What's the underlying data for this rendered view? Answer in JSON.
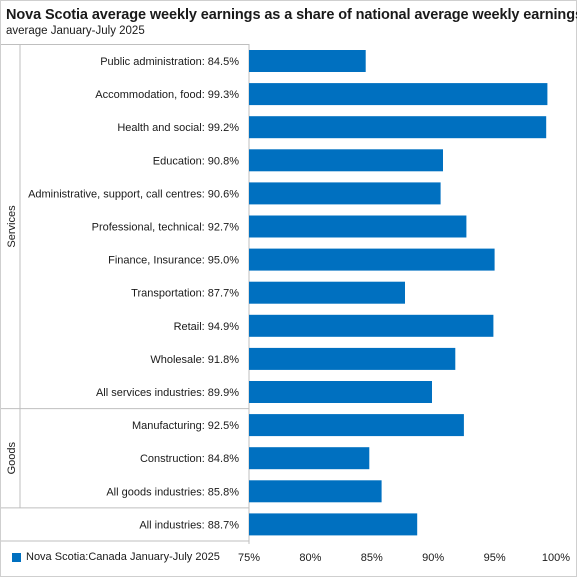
{
  "chart_data": {
    "type": "bar",
    "orientation": "horizontal",
    "title": "Nova Scotia average weekly earnings as a share of national average weekly earnings",
    "subtitle": "average January-July 2025",
    "series": [
      {
        "name": "Nova Scotia:Canada January-July 2025",
        "color": "#0070C0"
      }
    ],
    "groups": [
      {
        "name": "Services",
        "start": 0,
        "end": 10
      },
      {
        "name": "Goods",
        "start": 11,
        "end": 13
      }
    ],
    "categories": [
      "Public administration: 84.5%",
      "Accommodation, food: 99.3%",
      "Health and social: 99.2%",
      "Education: 90.8%",
      "Administrative, support, call centres: 90.6%",
      "Professional, technical: 92.7%",
      "Finance, Insurance: 95.0%",
      "Transportation: 87.7%",
      "Retail: 94.9%",
      "Wholesale: 91.8%",
      "All services industries: 89.9%",
      "Manufacturing: 92.5%",
      "Construction: 84.8%",
      "All goods industries: 85.8%",
      "All industries: 88.7%"
    ],
    "values": [
      84.5,
      99.3,
      99.2,
      90.8,
      90.6,
      92.7,
      95.0,
      87.7,
      94.9,
      91.8,
      89.9,
      92.5,
      84.8,
      85.8,
      88.7
    ],
    "xlim": [
      75,
      100
    ],
    "xticks": [
      75,
      80,
      85,
      90,
      95,
      100
    ],
    "xtick_labels": [
      "75%",
      "80%",
      "85%",
      "90%",
      "95%",
      "100%"
    ],
    "grid": false,
    "legend_position": "bottom-left"
  }
}
